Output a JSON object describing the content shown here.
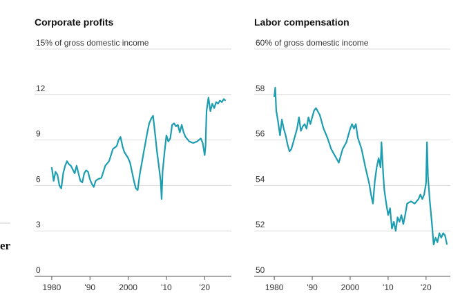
{
  "page_fragment": "er",
  "chart_data": [
    {
      "type": "line",
      "title": "Corporate profits",
      "color": "#1c9db0",
      "xlim": [
        1975.5,
        2027
      ],
      "xticks": [
        1980,
        {
          "value": 1990,
          "label": "'90"
        },
        2000,
        {
          "value": 2010,
          "label": "'10"
        },
        {
          "value": 2020,
          "label": "'20"
        }
      ],
      "ylim": [
        0,
        15
      ],
      "yticks": [
        0,
        3,
        6,
        9,
        12,
        {
          "value": 15,
          "label": "15% of gross domestic income"
        }
      ],
      "grid": true,
      "x": [
        1980,
        1980.5,
        1981,
        1981.5,
        1982,
        1982.5,
        1983,
        1983.5,
        1984,
        1984.5,
        1985,
        1986,
        1986.5,
        1987,
        1987.5,
        1988,
        1988.5,
        1989,
        1989.5,
        1990,
        1990.5,
        1991,
        1991.5,
        1992,
        1993,
        1994,
        1995,
        1996,
        1997,
        1997.5,
        1998,
        1998.5,
        1999,
        2000,
        2000.5,
        2001,
        2001.5,
        2002,
        2002.5,
        2003,
        2003.5,
        2004,
        2004.5,
        2005,
        2005.5,
        2006,
        2006.5,
        2007,
        2007.5,
        2008,
        2008.5,
        2008.75,
        2009,
        2009.5,
        2010,
        2010.5,
        2011,
        2011.5,
        2012,
        2012.5,
        2013,
        2013.5,
        2014,
        2014.5,
        2015,
        2016,
        2017,
        2018,
        2019,
        2019.5,
        2020,
        2020.25,
        2020.5,
        2021,
        2021.5,
        2022,
        2022.5,
        2023,
        2023.5,
        2024,
        2024.5,
        2025,
        2025.5
      ],
      "values": [
        7.2,
        6.3,
        6.9,
        6.7,
        6.0,
        5.8,
        6.8,
        7.3,
        7.6,
        7.4,
        7.3,
        6.8,
        7.3,
        6.8,
        6.3,
        6.2,
        6.8,
        7.0,
        6.9,
        6.4,
        6.1,
        5.9,
        6.3,
        6.4,
        6.5,
        7.3,
        7.6,
        8.4,
        8.6,
        9.0,
        9.2,
        8.6,
        8.2,
        7.8,
        7.5,
        6.9,
        6.3,
        5.8,
        5.7,
        6.7,
        7.4,
        8.1,
        8.8,
        9.5,
        10.1,
        10.4,
        10.6,
        9.5,
        8.3,
        7.3,
        6.3,
        5.1,
        6.9,
        8.2,
        9.3,
        8.9,
        9.1,
        10.0,
        10.1,
        9.9,
        10.0,
        9.5,
        10.0,
        9.5,
        9.2,
        8.9,
        8.8,
        8.9,
        9.1,
        8.8,
        8.0,
        8.6,
        10.9,
        11.8,
        10.9,
        11.4,
        11.1,
        11.5,
        11.4,
        11.6,
        11.5,
        11.7,
        11.6
      ]
    },
    {
      "type": "line",
      "title": "Labor compensation",
      "color": "#1c9db0",
      "xlim": [
        1974.7,
        2026.4
      ],
      "xticks": [
        1980,
        {
          "value": 1990,
          "label": "'90"
        },
        2000,
        {
          "value": 2010,
          "label": "'10"
        },
        {
          "value": 2020,
          "label": "'20"
        }
      ],
      "ylim": [
        50,
        60
      ],
      "yticks": [
        50,
        52,
        54,
        56,
        58,
        {
          "value": 60,
          "label": "60% of gross domestic income"
        }
      ],
      "grid": true,
      "x": [
        1980,
        1980.25,
        1980.5,
        1981,
        1981.5,
        1982,
        1982.5,
        1983,
        1983.5,
        1984,
        1984.5,
        1985,
        1986,
        1986.5,
        1987,
        1987.5,
        1988,
        1988.5,
        1989,
        1989.5,
        1990,
        1990.5,
        1991,
        1992,
        1993,
        1994,
        1995,
        1996,
        1997,
        1998,
        1999,
        2000,
        2000.5,
        2001,
        2001.5,
        2002,
        2003,
        2004,
        2005,
        2005.5,
        2006,
        2006.5,
        2007,
        2007.5,
        2008,
        2008.25,
        2008.75,
        2009,
        2009.5,
        2010,
        2010.5,
        2011,
        2011.5,
        2012,
        2012.5,
        2013,
        2013.5,
        2014,
        2014.5,
        2015,
        2016,
        2017,
        2018,
        2018.5,
        2019,
        2019.5,
        2020,
        2020.25,
        2020.5,
        2021,
        2021.5,
        2022,
        2022.5,
        2023,
        2023.5,
        2024,
        2024.5,
        2025,
        2025.5
      ],
      "values": [
        57.9,
        58.3,
        57.3,
        56.8,
        56.2,
        56.9,
        56.5,
        56.2,
        55.8,
        55.5,
        55.6,
        55.9,
        56.5,
        57.0,
        56.4,
        56.6,
        56.7,
        56.5,
        57.0,
        56.7,
        57.0,
        57.3,
        57.4,
        57.1,
        56.5,
        56.1,
        55.6,
        55.3,
        55.0,
        55.6,
        55.9,
        56.5,
        56.7,
        56.5,
        56.7,
        56.1,
        55.6,
        54.8,
        54.1,
        53.6,
        53.2,
        54.2,
        54.8,
        55.2,
        54.8,
        55.9,
        54.4,
        53.8,
        53.2,
        52.7,
        53.0,
        52.1,
        52.4,
        52.0,
        52.6,
        52.4,
        52.7,
        52.3,
        52.7,
        53.2,
        53.3,
        53.2,
        53.4,
        53.6,
        53.4,
        53.6,
        54.1,
        55.9,
        54.4,
        53.3,
        52.4,
        51.4,
        51.7,
        51.5,
        51.9,
        51.7,
        51.9,
        51.8,
        51.4
      ]
    }
  ]
}
